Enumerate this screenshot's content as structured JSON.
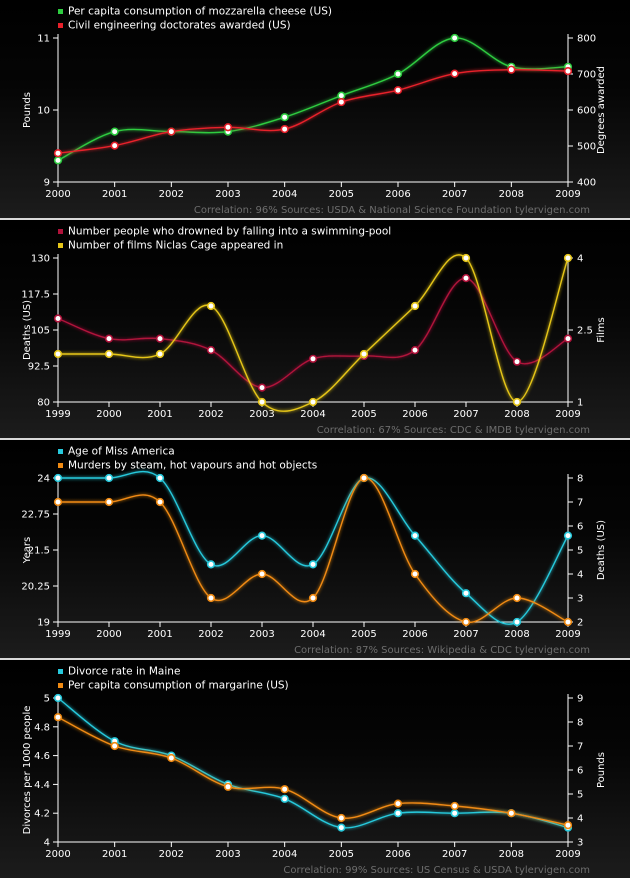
{
  "chart_data": [
    {
      "type": "line",
      "x": [
        "2000",
        "2001",
        "2002",
        "2003",
        "2004",
        "2005",
        "2006",
        "2007",
        "2008",
        "2009"
      ],
      "series": [
        {
          "name": "Per capita consumption of mozzarella cheese (US)",
          "axis": "left",
          "color": "#2ecc40",
          "values": [
            9.3,
            9.7,
            9.7,
            9.7,
            9.9,
            10.2,
            10.5,
            11.0,
            10.6,
            10.6
          ]
        },
        {
          "name": "Civil engineering doctorates awarded (US)",
          "axis": "right",
          "color": "#e8202a",
          "values": [
            480,
            501,
            540,
            552,
            547,
            622,
            655,
            701,
            712,
            708
          ]
        }
      ],
      "ylabel_left": "Pounds",
      "ylabel_right": "Degrees awarded",
      "ylim_left": [
        9,
        11
      ],
      "yticks_left": [
        "9",
        "10",
        "11"
      ],
      "ylim_right": [
        400,
        800
      ],
      "yticks_right": [
        "400",
        "500",
        "600",
        "700",
        "800"
      ],
      "credit": "Correlation: 96%    Sources: USDA & National Science Foundation    tylervigen.com",
      "legend": "top-left"
    },
    {
      "type": "line",
      "x": [
        "1999",
        "2000",
        "2001",
        "2002",
        "2003",
        "2004",
        "2005",
        "2006",
        "2007",
        "2008",
        "2009"
      ],
      "series": [
        {
          "name": "Number people who drowned by falling into a swimming-pool",
          "axis": "left",
          "color": "#b0123a",
          "values": [
            109,
            102,
            102,
            98,
            85,
            95,
            96,
            98,
            123,
            94,
            102
          ]
        },
        {
          "name": "Number of films Niclas Cage appeared in",
          "axis": "right",
          "color": "#e6c619",
          "values": [
            2,
            2,
            2,
            3,
            1,
            1,
            2,
            3,
            4,
            1,
            4
          ]
        }
      ],
      "ylabel_left": "Deaths (US)",
      "ylabel_right": "Films",
      "ylim_left": [
        80,
        130
      ],
      "yticks_left": [
        "80",
        "92.5",
        "105",
        "117.5",
        "130"
      ],
      "ylim_right": [
        1,
        4
      ],
      "yticks_right": [
        "1",
        "2.5",
        "4"
      ],
      "credit": "Correlation: 67%    Sources: CDC & IMDB    tylervigen.com",
      "legend": "top-left"
    },
    {
      "type": "line",
      "x": [
        "1999",
        "2000",
        "2001",
        "2002",
        "2003",
        "2004",
        "2005",
        "2006",
        "2007",
        "2008",
        "2009"
      ],
      "series": [
        {
          "name": "Age of Miss America",
          "axis": "left",
          "color": "#27c9dc",
          "values": [
            24,
            24,
            24,
            21,
            22,
            21,
            24,
            22,
            20,
            19,
            22
          ]
        },
        {
          "name": "Murders by steam, hot vapours and hot objects",
          "axis": "right",
          "color": "#f08a12",
          "values": [
            7,
            7,
            7,
            3,
            4,
            3,
            8,
            4,
            2,
            3,
            2
          ]
        }
      ],
      "ylabel_left": "Years",
      "ylabel_right": "Deaths (US)",
      "ylim_left": [
        19,
        24
      ],
      "yticks_left": [
        "19",
        "20.25",
        "21.5",
        "22.75",
        "24"
      ],
      "ylim_right": [
        2,
        8
      ],
      "yticks_right": [
        "2",
        "3",
        "4",
        "5",
        "6",
        "7",
        "8"
      ],
      "credit": "Correlation: 87%    Sources: Wikipedia & CDC    tylervigen.com",
      "legend": "top-left"
    },
    {
      "type": "line",
      "x": [
        "2000",
        "2001",
        "2002",
        "2003",
        "2004",
        "2005",
        "2006",
        "2007",
        "2008",
        "2009"
      ],
      "series": [
        {
          "name": "Divorce rate in Maine",
          "axis": "left",
          "color": "#27c9dc",
          "values": [
            5.0,
            4.7,
            4.6,
            4.4,
            4.3,
            4.1,
            4.2,
            4.2,
            4.2,
            4.1
          ]
        },
        {
          "name": "Per capita consumption of margarine (US)",
          "axis": "right",
          "color": "#f08a12",
          "values": [
            8.2,
            7.0,
            6.5,
            5.3,
            5.2,
            4.0,
            4.6,
            4.5,
            4.2,
            3.7
          ]
        }
      ],
      "ylabel_left": "Divorces per 1000 people",
      "ylabel_right": "Pounds",
      "ylim_left": [
        4,
        5
      ],
      "yticks_left": [
        "4",
        "4.2",
        "4.4",
        "4.6",
        "4.8",
        "5"
      ],
      "ylim_right": [
        3,
        9
      ],
      "yticks_right": [
        "3",
        "4",
        "5",
        "6",
        "7",
        "8",
        "9"
      ],
      "credit": "Correlation: 99%    Sources: US Census & USDA    tylervigen.com",
      "legend": "top-left"
    }
  ]
}
